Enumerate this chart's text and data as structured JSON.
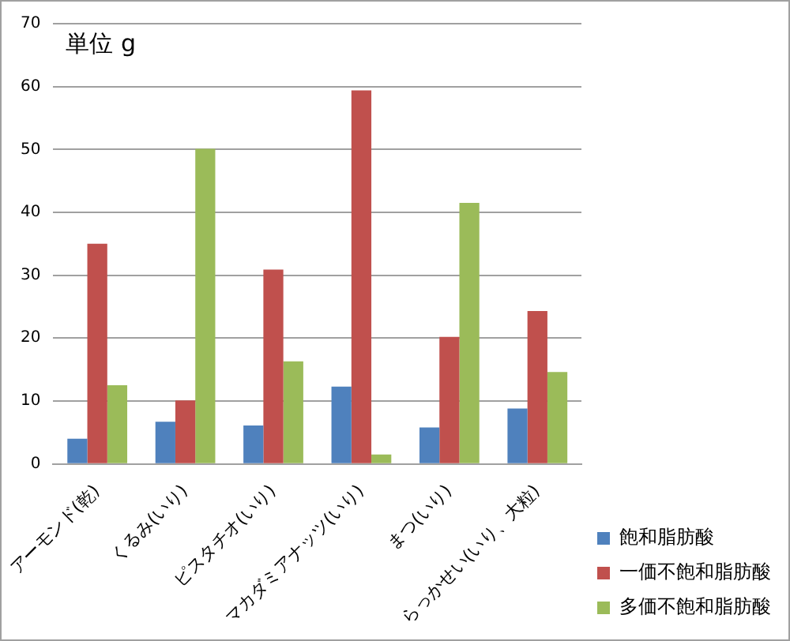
{
  "chart_data": {
    "type": "bar",
    "annotations": [
      "単位 g"
    ],
    "categories": [
      "アーモンド(乾)",
      "くるみ(いり)",
      "ピスタチオ(いり)",
      "マカダミアナッツ(いり)",
      "まつ(いり)",
      "らっかせい(いり、大粒)"
    ],
    "series": [
      {
        "name": "飽和脂肪酸",
        "color": "#4f81bd",
        "values": [
          4,
          6.7,
          6.1,
          12.3,
          5.8,
          8.8
        ]
      },
      {
        "name": "一価不飽和脂肪酸",
        "color": "#c0504d",
        "values": [
          35,
          10.1,
          30.9,
          59.4,
          20.2,
          24.3
        ]
      },
      {
        "name": "多価不飽和脂肪酸",
        "color": "#9bbb59",
        "values": [
          12.5,
          50.1,
          16.3,
          1.5,
          41.5,
          14.6
        ]
      }
    ],
    "ylim": [
      0,
      70
    ],
    "yticks": [
      0,
      10,
      20,
      30,
      40,
      50,
      60,
      70
    ],
    "grid": "y",
    "legend": "bottom right"
  }
}
